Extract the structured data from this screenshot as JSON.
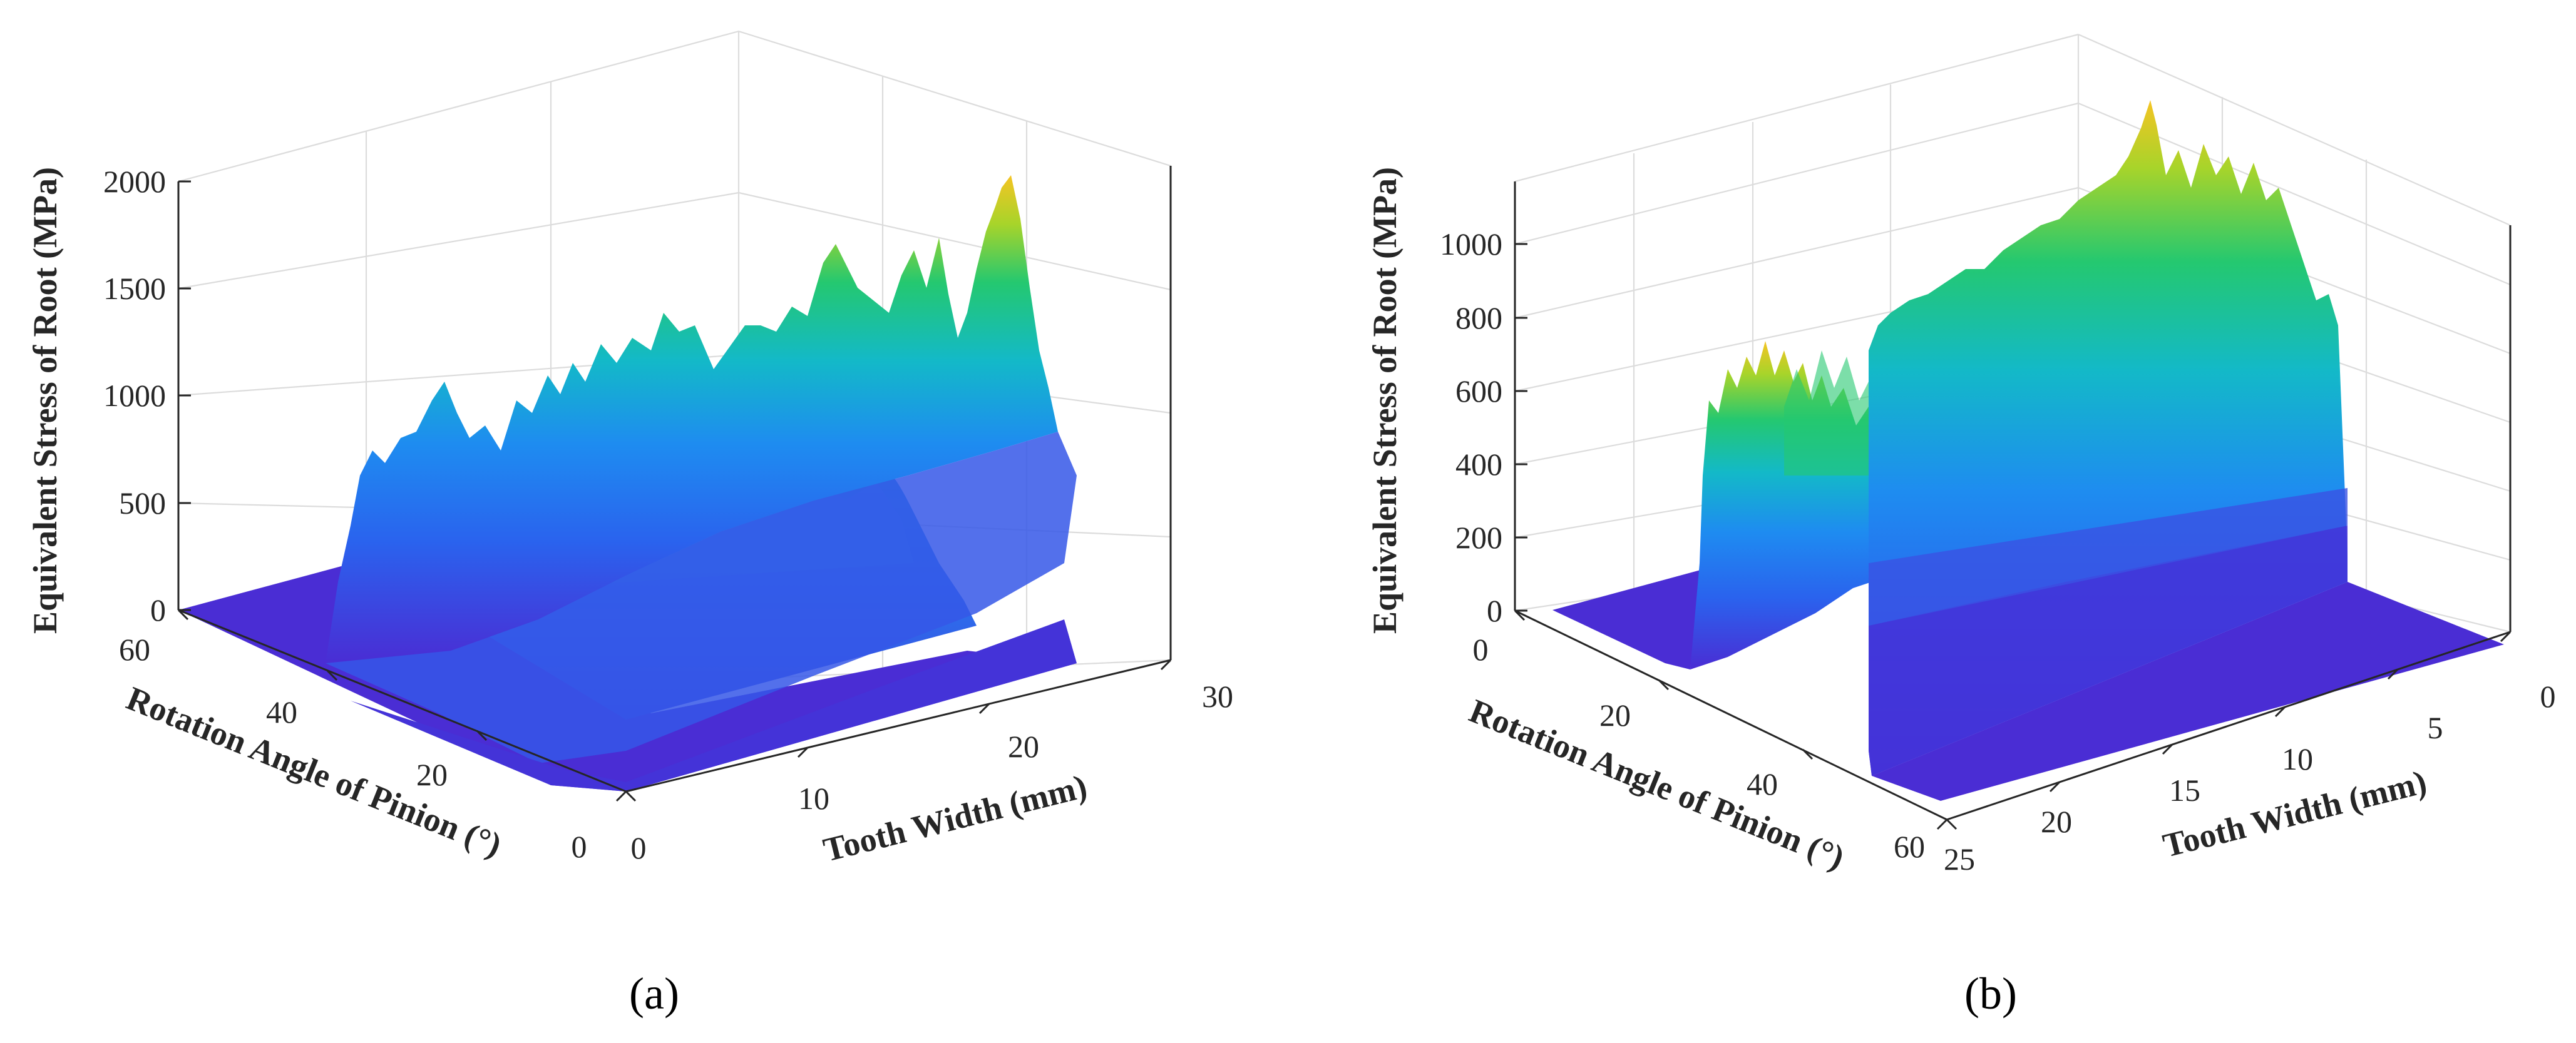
{
  "colors": {
    "low": "#4a2dd4",
    "mid_blue": "#1e8cf0",
    "cyan": "#13b9c8",
    "green": "#24c870",
    "yellow_green": "#a8d42a",
    "yellow": "#f5c423",
    "peak": "#fcd92a",
    "axis": "#262626",
    "grid": "#dcdcdc"
  },
  "chart_data": [
    {
      "type": "surface3d",
      "panel_label": "(a)",
      "zlabel": "Equivalent Stress of Root (MPa)",
      "ylabel": "Rotation Angle of Pinion (°)",
      "xlabel": "Tooth Width (mm)",
      "zlim": [
        0,
        2000
      ],
      "ylim": [
        0,
        60
      ],
      "xlim": [
        0,
        30
      ],
      "z_ticks": [
        "0",
        "500",
        "1000",
        "1500",
        "2000"
      ],
      "y_ticks": [
        "60",
        "40",
        "20",
        "0"
      ],
      "x_ticks": [
        "0",
        "10",
        "20",
        "30"
      ],
      "surface": {
        "active_angle_range_deg": [
          25,
          55
        ],
        "tooth_width_range_mm": [
          0,
          28
        ],
        "front_ridge_stress_mpa": [
          900,
          1100,
          1080,
          1300,
          1200,
          1350,
          1500,
          1400,
          1600,
          1450,
          1700,
          1600,
          1900
        ],
        "peak_stress_mpa": 1950,
        "back_plateau_stress_mpa": 700
      }
    },
    {
      "type": "surface3d",
      "panel_label": "(b)",
      "zlabel": "Equivalent Stress of Root (MPa)",
      "ylabel": "Rotation Angle of Pinion (°)",
      "xlabel": "Tooth Width (mm)",
      "zlim": [
        0,
        1200
      ],
      "ylim": [
        0,
        60
      ],
      "xlim": [
        0,
        25
      ],
      "z_ticks": [
        "0",
        "200",
        "400",
        "600",
        "800",
        "1000"
      ],
      "y_ticks": [
        "0",
        "20",
        "40",
        "60"
      ],
      "x_ticks": [
        "25",
        "20",
        "15",
        "10",
        "5",
        "0"
      ],
      "surface": {
        "active_angle_range_deg": [
          22,
          58
        ],
        "tooth_width_range_mm": [
          0,
          25
        ],
        "left_block_stress_mpa": [
          620,
          700,
          680,
          650,
          720,
          600
        ],
        "main_block_stress_mpa": [
          850,
          900,
          880,
          950,
          920,
          1000,
          980,
          1050,
          1100,
          1080,
          1150,
          1120,
          1050
        ],
        "peak_stress_mpa": 1150
      }
    }
  ]
}
